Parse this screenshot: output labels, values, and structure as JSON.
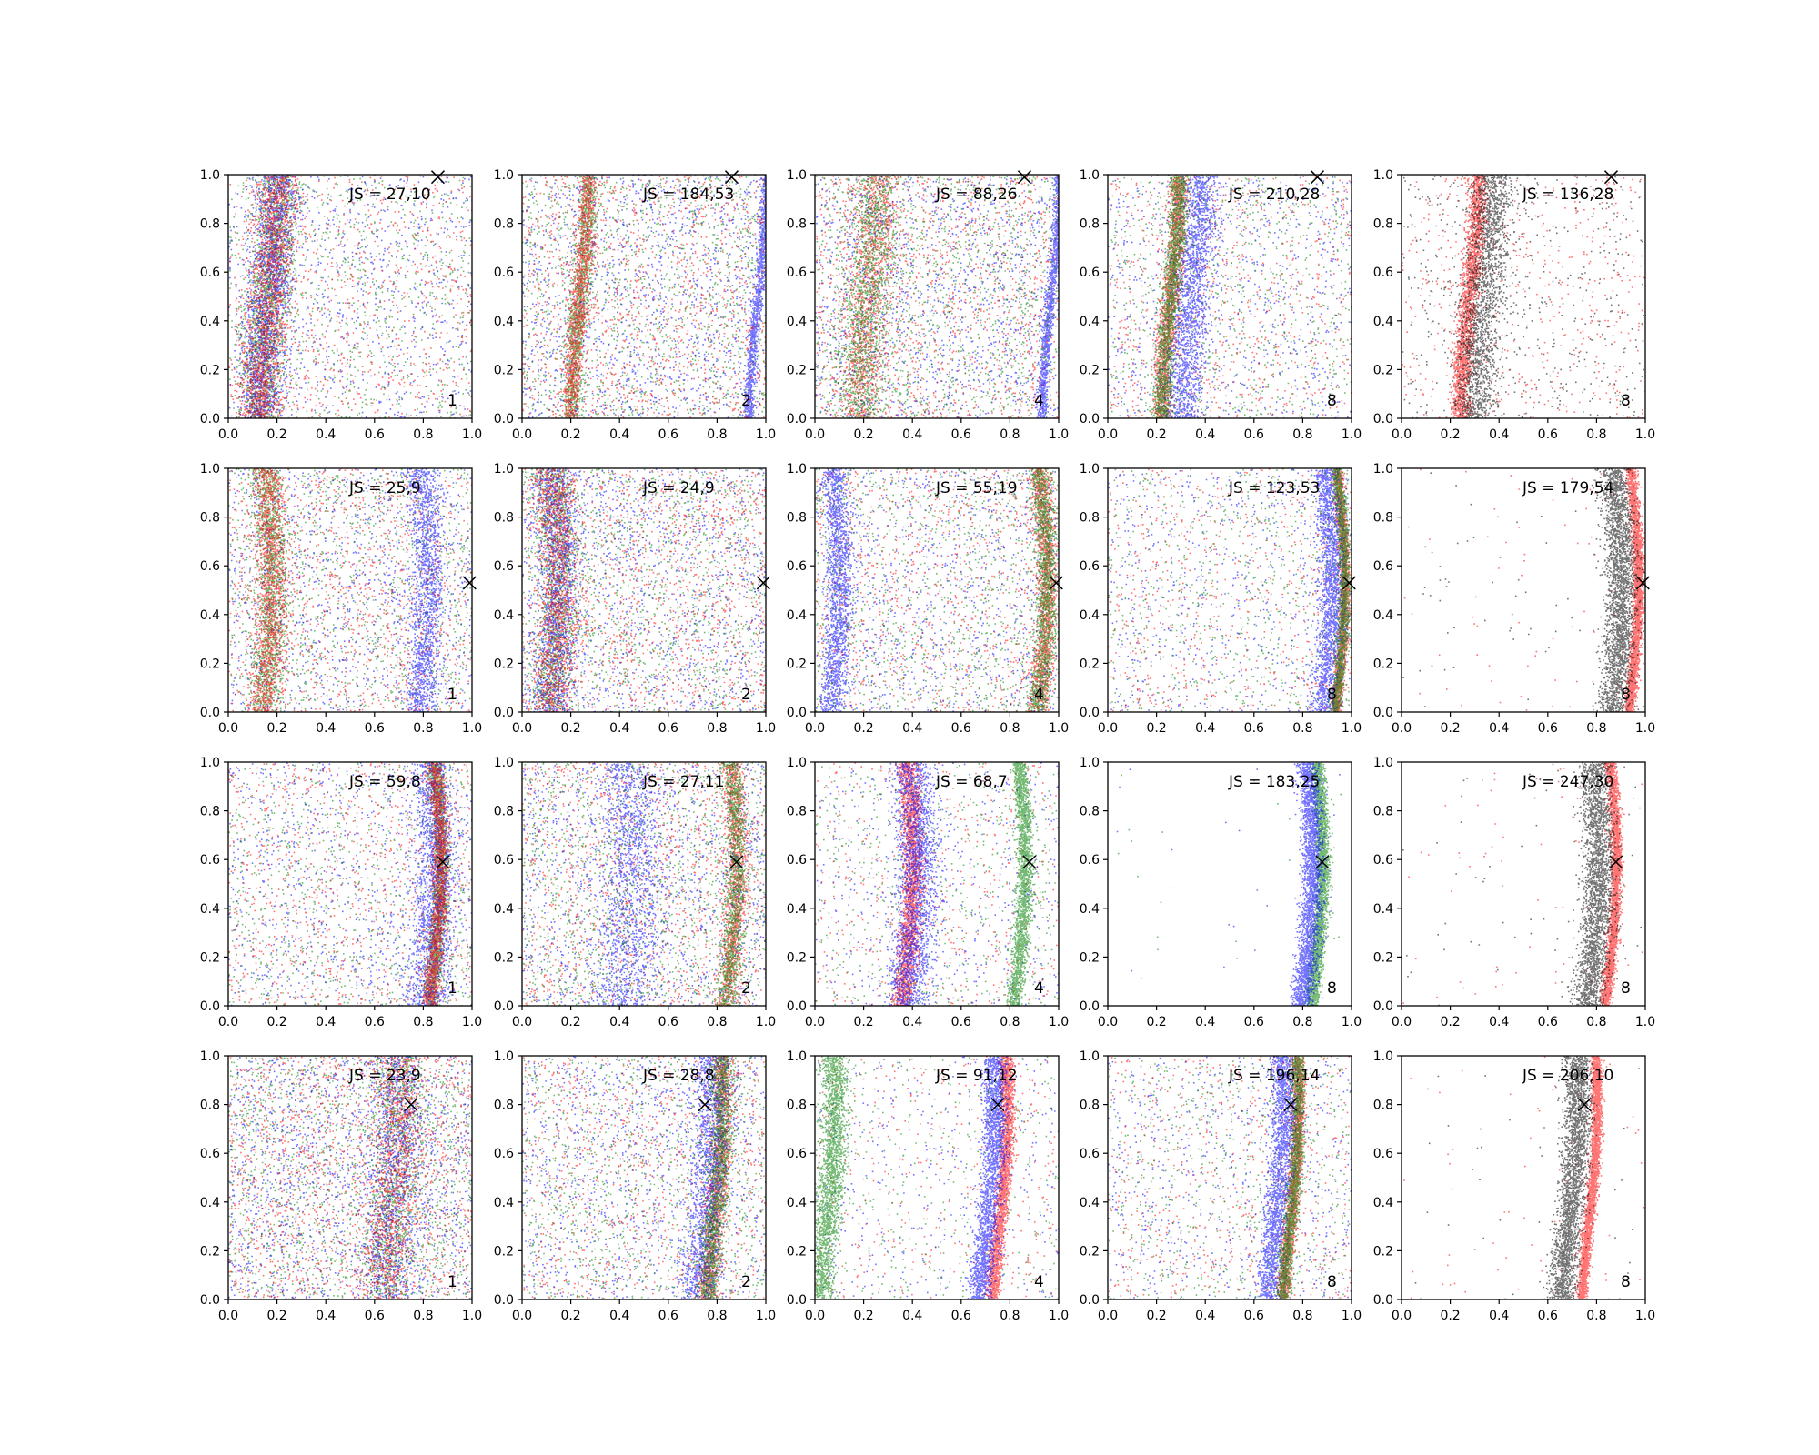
{
  "colors": {
    "green": "#008000",
    "blue": "#0000ff",
    "red": "#ff0000",
    "black": "#000000",
    "axis": "#000000",
    "background": "#ffffff"
  },
  "chart_data": {
    "type": "scatter",
    "layout": "4 rows x 5 columns grid of scatter panels",
    "xlim": [
      0,
      1
    ],
    "ylim": [
      0,
      1
    ],
    "xticks": [
      "0.0",
      "0.2",
      "0.4",
      "0.6",
      "0.8",
      "1.0"
    ],
    "yticks": [
      "0.0",
      "0.2",
      "0.4",
      "0.6",
      "0.8",
      "1.0"
    ],
    "grid": false,
    "marker": "x",
    "rows": [
      {
        "marker_x": [
          0.86,
          0.99
        ],
        "panels": [
          {
            "js": "JS = 27,10",
            "k": "1",
            "colors": [
              "green",
              "blue",
              "red"
            ],
            "bands": [
              {
                "x": 0.2,
                "w": 0.08
              }
            ],
            "scatter": 0.35
          },
          {
            "js": "JS = 184,53",
            "k": "2",
            "colors": [
              "green",
              "blue",
              "red"
            ],
            "bands": [
              {
                "x": 0.27,
                "w": 0.035
              },
              {
                "x": 1.0,
                "w": 0.02
              }
            ],
            "scatter": 0.5
          },
          {
            "js": "JS = 88,26",
            "k": "4",
            "colors": [
              "red",
              "blue",
              "green"
            ],
            "bands": [
              {
                "x": 0.25,
                "w": 0.09
              },
              {
                "x": 1.0,
                "w": 0.02
              }
            ],
            "scatter": 0.5
          },
          {
            "js": "JS = 210,28",
            "k": "8",
            "colors": [
              "red",
              "blue",
              "green"
            ],
            "bands": [
              {
                "x": 0.29,
                "w": 0.035
              },
              {
                "x": 0.38,
                "w": 0.07
              }
            ],
            "scatter": 0.3
          },
          {
            "js": "JS = 136,28",
            "k": "8",
            "colors": [
              "red",
              "black"
            ],
            "bands": [
              {
                "x": 0.31,
                "w": 0.035
              },
              {
                "x": 0.37,
                "w": 0.08
              }
            ],
            "scatter": 0.2
          }
        ]
      },
      {
        "marker_x": [
          0.99,
          0.53
        ],
        "panels": [
          {
            "js": "JS = 25,9",
            "k": "1",
            "colors": [
              "green",
              "blue",
              "red"
            ],
            "bands": [
              {
                "x": 0.18,
                "w": 0.06
              },
              {
                "x": 0.82,
                "w": 0.06
              }
            ],
            "scatter": 0.45
          },
          {
            "js": "JS = 24,9",
            "k": "2",
            "colors": [
              "green",
              "blue",
              "red"
            ],
            "bands": [
              {
                "x": 0.15,
                "w": 0.08
              }
            ],
            "scatter": 0.5
          },
          {
            "js": "JS = 55,19",
            "k": "4",
            "colors": [
              "red",
              "blue",
              "green"
            ],
            "bands": [
              {
                "x": 0.95,
                "w": 0.04
              },
              {
                "x": 0.1,
                "w": 0.05
              }
            ],
            "scatter": 0.4
          },
          {
            "js": "JS = 123,53",
            "k": "8",
            "colors": [
              "red",
              "blue",
              "green"
            ],
            "bands": [
              {
                "x": 0.97,
                "w": 0.02
              },
              {
                "x": 0.92,
                "w": 0.05
              }
            ],
            "scatter": 0.25
          },
          {
            "js": "JS = 179,54",
            "k": "8",
            "colors": [
              "red",
              "black"
            ],
            "bands": [
              {
                "x": 0.97,
                "w": 0.02
              },
              {
                "x": 0.9,
                "w": 0.06
              }
            ],
            "scatter": 0.02
          }
        ]
      },
      {
        "marker_x": [
          0.88,
          0.59
        ],
        "panels": [
          {
            "js": "JS = 59,8",
            "k": "1",
            "colors": [
              "green",
              "blue",
              "red"
            ],
            "bands": [
              {
                "x": 0.87,
                "w": 0.03
              },
              {
                "x": 0.85,
                "w": 0.08
              }
            ],
            "scatter": 0.35
          },
          {
            "js": "JS = 27,11",
            "k": "2",
            "colors": [
              "red",
              "blue",
              "green"
            ],
            "bands": [
              {
                "x": 0.88,
                "w": 0.04
              },
              {
                "x": 0.45,
                "w": 0.12
              }
            ],
            "scatter": 0.5
          },
          {
            "js": "JS = 68,7",
            "k": "4",
            "colors": [
              "red",
              "blue",
              "green"
            ],
            "bands": [
              {
                "x": 0.4,
                "w": 0.04
              },
              {
                "x": 0.42,
                "w": 0.08
              },
              {
                "x": 0.86,
                "w": 0.03
              }
            ],
            "scatter": 0.2
          },
          {
            "js": "JS = 183,25",
            "k": "8",
            "colors": [
              "green",
              "blue"
            ],
            "bands": [
              {
                "x": 0.88,
                "w": 0.025
              },
              {
                "x": 0.84,
                "w": 0.04
              }
            ],
            "scatter": 0.01
          },
          {
            "js": "JS = 247,30",
            "k": "8",
            "colors": [
              "red",
              "black"
            ],
            "bands": [
              {
                "x": 0.88,
                "w": 0.02
              },
              {
                "x": 0.81,
                "w": 0.06
              }
            ],
            "scatter": 0.02
          }
        ]
      },
      {
        "marker_x": [
          0.75,
          0.8
        ],
        "panels": [
          {
            "js": "JS = 23,9",
            "k": "1",
            "colors": [
              "green",
              "blue",
              "red"
            ],
            "bands": [
              {
                "x": 0.7,
                "w": 0.1
              }
            ],
            "scatter": 0.6
          },
          {
            "js": "JS = 28,8",
            "k": "2",
            "colors": [
              "red",
              "blue",
              "green"
            ],
            "bands": [
              {
                "x": 0.82,
                "w": 0.04
              },
              {
                "x": 0.78,
                "w": 0.07
              }
            ],
            "scatter": 0.4
          },
          {
            "js": "JS = 91,12",
            "k": "4",
            "colors": [
              "red",
              "blue",
              "green"
            ],
            "bands": [
              {
                "x": 0.79,
                "w": 0.025
              },
              {
                "x": 0.74,
                "w": 0.045
              },
              {
                "x": 0.08,
                "w": 0.05
              }
            ],
            "scatter": 0.15
          },
          {
            "js": "JS = 196,14",
            "k": "8",
            "colors": [
              "red",
              "blue",
              "green"
            ],
            "bands": [
              {
                "x": 0.78,
                "w": 0.025
              },
              {
                "x": 0.72,
                "w": 0.045
              }
            ],
            "scatter": 0.25
          },
          {
            "js": "JS = 206,10",
            "k": "8",
            "colors": [
              "red",
              "black"
            ],
            "bands": [
              {
                "x": 0.8,
                "w": 0.02
              },
              {
                "x": 0.72,
                "w": 0.05
              }
            ],
            "scatter": 0.02
          }
        ]
      }
    ]
  }
}
